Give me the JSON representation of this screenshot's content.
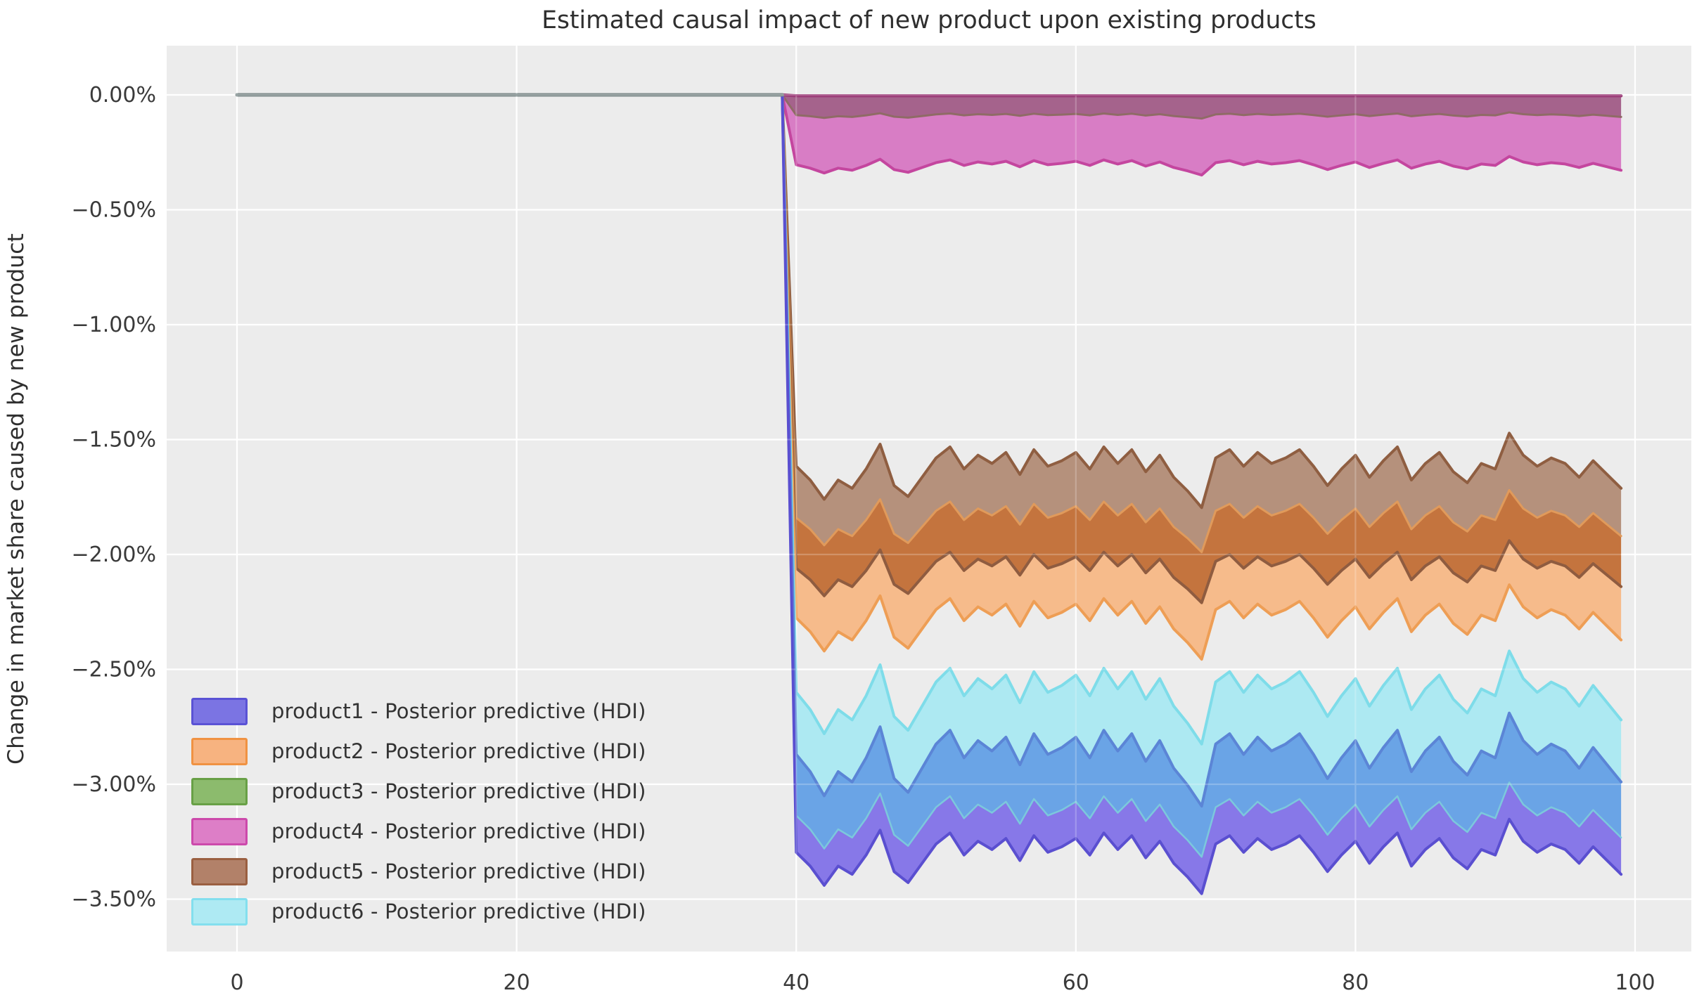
{
  "chart": {
    "title": "Estimated causal impact of new product upon existing products",
    "ylabel": "Change in market share caused by new product",
    "xlabel": "",
    "colors": {
      "figure_bg": "#ffffff",
      "axes_bg": "#ececec",
      "grid": "#ffffff",
      "text": "#333333",
      "tick_text": "#3a3a3a"
    },
    "x_ticks": [
      "0",
      "20",
      "40",
      "60",
      "80",
      "100"
    ],
    "x_tick_values": [
      0,
      20,
      40,
      60,
      80,
      100
    ],
    "y_ticks": [
      {
        "v": 0,
        "label": "0.00%"
      },
      {
        "v": -0.5,
        "label": "−0.50%"
      },
      {
        "v": -1,
        "label": "−1.00%"
      },
      {
        "v": -1.5,
        "label": "−1.50%"
      },
      {
        "v": -2,
        "label": "−2.00%"
      },
      {
        "v": -2.5,
        "label": "−2.50%"
      },
      {
        "v": -3,
        "label": "−3.00%"
      },
      {
        "v": -3.5,
        "label": "−3.50%"
      }
    ],
    "legend": {
      "items": [
        {
          "label": "product1 - Posterior predictive (HDI)",
          "fill": "#7b74e3",
          "edge": "#5a52d5"
        },
        {
          "label": "product2 - Posterior predictive (HDI)",
          "fill": "#f7b380",
          "edge": "#f09242"
        },
        {
          "label": "product3 - Posterior predictive (HDI)",
          "fill": "#8cbb6d",
          "edge": "#68a046"
        },
        {
          "label": "product4 - Posterior predictive (HDI)",
          "fill": "#dd7ec7",
          "edge": "#cc49ab"
        },
        {
          "label": "product5 - Posterior predictive (HDI)",
          "fill": "#b28169",
          "edge": "#9a5f41"
        },
        {
          "label": "product6 - Posterior predictive (HDI)",
          "fill": "#aeeaf3",
          "edge": "#83dfee"
        }
      ]
    }
  },
  "chart_data": {
    "type": "area",
    "title": "Estimated causal impact of new product upon existing products",
    "ylabel": "Change in market share caused by new product",
    "y_unit": "percent",
    "xlim": [
      -5,
      104.2
    ],
    "ylim": [
      -3.72,
      0.21
    ],
    "grid": true,
    "legend_position": "lower left",
    "intervention_x": 40,
    "pre_period": {
      "x_start": 0,
      "x_end": 39,
      "value": 0,
      "line_color": "#7e8c8c"
    },
    "x": [
      40,
      41,
      42,
      43,
      44,
      45,
      46,
      47,
      48,
      49,
      50,
      51,
      52,
      53,
      54,
      55,
      56,
      57,
      58,
      59,
      60,
      61,
      62,
      63,
      64,
      65,
      66,
      67,
      68,
      69,
      70,
      71,
      72,
      73,
      74,
      75,
      76,
      77,
      78,
      79,
      80,
      81,
      82,
      83,
      84,
      85,
      86,
      87,
      88,
      89,
      90,
      91,
      92,
      93,
      94,
      95,
      96,
      97,
      98,
      99
    ],
    "series": [
      {
        "name": "product1",
        "band": "Posterior predictive (HDI)",
        "hi": [
          -2.87,
          -2.945,
          -3.05,
          -2.945,
          -2.99,
          -2.885,
          -2.75,
          -2.975,
          -3.035,
          -2.93,
          -2.825,
          -2.765,
          -2.885,
          -2.81,
          -2.855,
          -2.795,
          -2.915,
          -2.78,
          -2.87,
          -2.84,
          -2.795,
          -2.885,
          -2.765,
          -2.855,
          -2.78,
          -2.9,
          -2.81,
          -2.93,
          -3.005,
          -3.095,
          -2.825,
          -2.78,
          -2.87,
          -2.795,
          -2.855,
          -2.825,
          -2.78,
          -2.87,
          -2.975,
          -2.885,
          -2.81,
          -2.93,
          -2.84,
          -2.765,
          -2.945,
          -2.855,
          -2.795,
          -2.9,
          -2.96,
          -2.855,
          -2.885,
          -2.69,
          -2.81,
          -2.87,
          -2.825,
          -2.855,
          -2.93,
          -2.84,
          -2.915,
          -2.99
        ],
        "lo": [
          -3.296,
          -3.356,
          -3.44,
          -3.356,
          -3.392,
          -3.308,
          -3.2,
          -3.38,
          -3.428,
          -3.344,
          -3.26,
          -3.212,
          -3.308,
          -3.248,
          -3.284,
          -3.236,
          -3.332,
          -3.224,
          -3.296,
          -3.272,
          -3.236,
          -3.308,
          -3.212,
          -3.284,
          -3.224,
          -3.32,
          -3.248,
          -3.344,
          -3.404,
          -3.476,
          -3.26,
          -3.224,
          -3.296,
          -3.236,
          -3.284,
          -3.26,
          -3.224,
          -3.296,
          -3.38,
          -3.308,
          -3.248,
          -3.344,
          -3.272,
          -3.212,
          -3.356,
          -3.284,
          -3.236,
          -3.32,
          -3.368,
          -3.284,
          -3.308,
          -3.152,
          -3.248,
          -3.296,
          -3.26,
          -3.284,
          -3.344,
          -3.272,
          -3.332,
          -3.392
        ]
      },
      {
        "name": "product2",
        "band": "Posterior predictive (HDI)",
        "hi": [
          -1.84,
          -1.89,
          -1.96,
          -1.89,
          -1.92,
          -1.85,
          -1.76,
          -1.91,
          -1.95,
          -1.88,
          -1.81,
          -1.77,
          -1.85,
          -1.8,
          -1.83,
          -1.79,
          -1.87,
          -1.78,
          -1.84,
          -1.82,
          -1.79,
          -1.85,
          -1.77,
          -1.83,
          -1.78,
          -1.86,
          -1.8,
          -1.88,
          -1.93,
          -1.99,
          -1.81,
          -1.78,
          -1.84,
          -1.79,
          -1.83,
          -1.81,
          -1.78,
          -1.84,
          -1.91,
          -1.85,
          -1.8,
          -1.88,
          -1.82,
          -1.77,
          -1.89,
          -1.83,
          -1.79,
          -1.86,
          -1.9,
          -1.83,
          -1.85,
          -1.72,
          -1.8,
          -1.84,
          -1.81,
          -1.83,
          -1.88,
          -1.82,
          -1.87,
          -1.92
        ],
        "lo": [
          -2.276,
          -2.336,
          -2.42,
          -2.336,
          -2.372,
          -2.288,
          -2.18,
          -2.36,
          -2.408,
          -2.324,
          -2.24,
          -2.192,
          -2.288,
          -2.228,
          -2.264,
          -2.216,
          -2.312,
          -2.204,
          -2.276,
          -2.252,
          -2.216,
          -2.288,
          -2.192,
          -2.264,
          -2.204,
          -2.3,
          -2.228,
          -2.324,
          -2.384,
          -2.456,
          -2.24,
          -2.204,
          -2.276,
          -2.216,
          -2.264,
          -2.24,
          -2.204,
          -2.276,
          -2.36,
          -2.288,
          -2.228,
          -2.324,
          -2.252,
          -2.192,
          -2.336,
          -2.264,
          -2.216,
          -2.3,
          -2.348,
          -2.264,
          -2.288,
          -2.132,
          -2.228,
          -2.276,
          -2.24,
          -2.264,
          -2.324,
          -2.252,
          -2.312,
          -2.372
        ]
      },
      {
        "name": "product3",
        "band": "Posterior predictive (HDI)",
        "hi": -0.005,
        "lo": [
          -0.088,
          -0.093,
          -0.1,
          -0.093,
          -0.096,
          -0.089,
          -0.08,
          -0.095,
          -0.099,
          -0.092,
          -0.085,
          -0.081,
          -0.089,
          -0.084,
          -0.087,
          -0.083,
          -0.091,
          -0.082,
          -0.088,
          -0.086,
          -0.083,
          -0.089,
          -0.081,
          -0.087,
          -0.082,
          -0.09,
          -0.084,
          -0.092,
          -0.097,
          -0.103,
          -0.085,
          -0.082,
          -0.088,
          -0.083,
          -0.087,
          -0.085,
          -0.082,
          -0.088,
          -0.095,
          -0.089,
          -0.084,
          -0.092,
          -0.086,
          -0.081,
          -0.093,
          -0.087,
          -0.083,
          -0.09,
          -0.094,
          -0.087,
          -0.089,
          -0.076,
          -0.084,
          -0.088,
          -0.085,
          -0.087,
          -0.092,
          -0.086,
          -0.091,
          -0.096
        ]
      },
      {
        "name": "product4",
        "band": "Posterior predictive (HDI)",
        "hi": -0.015,
        "lo": [
          -0.304,
          -0.319,
          -0.34,
          -0.319,
          -0.328,
          -0.307,
          -0.28,
          -0.325,
          -0.337,
          -0.316,
          -0.295,
          -0.283,
          -0.307,
          -0.292,
          -0.301,
          -0.289,
          -0.313,
          -0.286,
          -0.304,
          -0.298,
          -0.289,
          -0.307,
          -0.283,
          -0.301,
          -0.286,
          -0.31,
          -0.292,
          -0.316,
          -0.331,
          -0.349,
          -0.295,
          -0.286,
          -0.304,
          -0.289,
          -0.301,
          -0.295,
          -0.286,
          -0.304,
          -0.325,
          -0.307,
          -0.292,
          -0.316,
          -0.298,
          -0.283,
          -0.319,
          -0.301,
          -0.289,
          -0.31,
          -0.322,
          -0.301,
          -0.307,
          -0.268,
          -0.292,
          -0.304,
          -0.295,
          -0.301,
          -0.316,
          -0.298,
          -0.313,
          -0.328
        ]
      },
      {
        "name": "product5",
        "band": "Posterior predictive (HDI)",
        "hi": [
          -1.616,
          -1.676,
          -1.76,
          -1.676,
          -1.712,
          -1.628,
          -1.52,
          -1.7,
          -1.748,
          -1.664,
          -1.58,
          -1.532,
          -1.628,
          -1.568,
          -1.604,
          -1.556,
          -1.652,
          -1.544,
          -1.616,
          -1.592,
          -1.556,
          -1.628,
          -1.532,
          -1.604,
          -1.544,
          -1.64,
          -1.568,
          -1.664,
          -1.724,
          -1.796,
          -1.58,
          -1.544,
          -1.616,
          -1.556,
          -1.604,
          -1.58,
          -1.544,
          -1.616,
          -1.7,
          -1.628,
          -1.568,
          -1.664,
          -1.592,
          -1.532,
          -1.676,
          -1.604,
          -1.556,
          -1.64,
          -1.688,
          -1.604,
          -1.628,
          -1.472,
          -1.568,
          -1.616,
          -1.58,
          -1.604,
          -1.664,
          -1.592,
          -1.652,
          -1.712
        ],
        "lo": [
          -2.06,
          -2.11,
          -2.18,
          -2.11,
          -2.14,
          -2.07,
          -1.98,
          -2.13,
          -2.17,
          -2.1,
          -2.03,
          -1.99,
          -2.07,
          -2.02,
          -2.05,
          -2.01,
          -2.09,
          -2.0,
          -2.06,
          -2.04,
          -2.01,
          -2.07,
          -1.99,
          -2.05,
          -2.0,
          -2.08,
          -2.02,
          -2.1,
          -2.15,
          -2.21,
          -2.03,
          -2.0,
          -2.06,
          -2.01,
          -2.05,
          -2.03,
          -2.0,
          -2.06,
          -2.13,
          -2.07,
          -2.02,
          -2.1,
          -2.04,
          -1.99,
          -2.11,
          -2.05,
          -2.01,
          -2.08,
          -2.12,
          -2.05,
          -2.07,
          -1.94,
          -2.02,
          -2.06,
          -2.03,
          -2.05,
          -2.1,
          -2.04,
          -2.09,
          -2.14
        ]
      },
      {
        "name": "product6",
        "band": "Posterior predictive (HDI)",
        "hi": [
          -2.6,
          -2.675,
          -2.78,
          -2.675,
          -2.72,
          -2.615,
          -2.48,
          -2.705,
          -2.765,
          -2.66,
          -2.555,
          -2.495,
          -2.615,
          -2.54,
          -2.585,
          -2.525,
          -2.645,
          -2.51,
          -2.6,
          -2.57,
          -2.525,
          -2.615,
          -2.495,
          -2.585,
          -2.51,
          -2.63,
          -2.54,
          -2.66,
          -2.735,
          -2.825,
          -2.555,
          -2.51,
          -2.6,
          -2.525,
          -2.585,
          -2.555,
          -2.51,
          -2.6,
          -2.705,
          -2.615,
          -2.54,
          -2.66,
          -2.57,
          -2.495,
          -2.675,
          -2.585,
          -2.525,
          -2.63,
          -2.69,
          -2.585,
          -2.615,
          -2.42,
          -2.54,
          -2.6,
          -2.555,
          -2.585,
          -2.66,
          -2.57,
          -2.645,
          -2.72
        ],
        "lo": [
          -3.136,
          -3.196,
          -3.28,
          -3.196,
          -3.232,
          -3.148,
          -3.04,
          -3.22,
          -3.268,
          -3.184,
          -3.1,
          -3.052,
          -3.148,
          -3.088,
          -3.124,
          -3.076,
          -3.172,
          -3.064,
          -3.136,
          -3.112,
          -3.076,
          -3.148,
          -3.052,
          -3.124,
          -3.064,
          -3.16,
          -3.088,
          -3.184,
          -3.244,
          -3.316,
          -3.1,
          -3.064,
          -3.136,
          -3.076,
          -3.124,
          -3.1,
          -3.064,
          -3.136,
          -3.22,
          -3.148,
          -3.088,
          -3.184,
          -3.112,
          -3.052,
          -3.196,
          -3.124,
          -3.076,
          -3.16,
          -3.208,
          -3.124,
          -3.148,
          -2.992,
          -3.088,
          -3.136,
          -3.1,
          -3.124,
          -3.184,
          -3.112,
          -3.172,
          -3.232
        ]
      }
    ],
    "rendered_region_colors": {
      "green_pink_overlap_strip": "#a5638c",
      "pink_only": "#d87dc5",
      "brown_only": "#b5917c",
      "brown_orange_overlap": "#c4743e",
      "orange_only": "#f6bb8b",
      "cyan_only": "#ade9f2",
      "cyan_blue_overlap": "#6aa4e6",
      "purple_only": "#8778e8"
    },
    "rendered_edge_colors": {
      "zero_top_line": "#9c3c78",
      "green_lower": "#8f6b66",
      "pink_lower": "#c4469f",
      "brown_upper": "#8f5e41",
      "orange_upper": "#e09a5b",
      "brown_lower": "#8f5c40",
      "orange_lower": "#ee9e55",
      "cyan_upper": "#7edce9",
      "blue_upper": "#5b85d6",
      "cyan_lower": "#7cc8dc",
      "blue_lower": "#5a4fd0"
    }
  }
}
